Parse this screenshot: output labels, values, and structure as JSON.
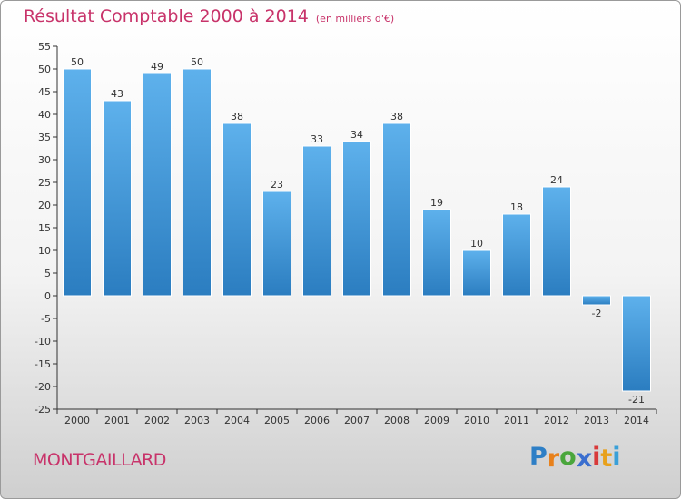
{
  "header": {
    "title": "Résultat Comptable 2000 à 2014",
    "unit": "(en milliers d'€)"
  },
  "footer": {
    "town": "MONTGAILLARD",
    "logo_letters": [
      "P",
      "r",
      "o",
      "x",
      "i",
      "t",
      "i"
    ],
    "logo_colors": [
      "#2e7fc6",
      "#e8811b",
      "#4aa63c",
      "#3a6ecf",
      "#d83a3a",
      "#e8a11b",
      "#3aa0d8"
    ]
  },
  "chart_data": {
    "type": "bar",
    "title": "Résultat Comptable 2000 à 2014",
    "subtitle": "(en milliers d'€)",
    "categories": [
      "2000",
      "2001",
      "2002",
      "2003",
      "2004",
      "2005",
      "2006",
      "2007",
      "2008",
      "2009",
      "2010",
      "2011",
      "2012",
      "2013",
      "2014"
    ],
    "values": [
      50,
      43,
      49,
      50,
      38,
      23,
      33,
      34,
      38,
      19,
      10,
      18,
      24,
      -2,
      -21
    ],
    "ylim": [
      -25,
      55
    ],
    "yticks": [
      -25,
      -20,
      -15,
      -10,
      -5,
      0,
      5,
      10,
      15,
      20,
      25,
      30,
      35,
      40,
      45,
      50,
      55
    ],
    "grid": false,
    "colors": {
      "bar_top": "#5eb1ec",
      "bar_bottom": "#2b7dc0",
      "bar_border": "#ffffff",
      "axis": "#333333"
    }
  }
}
